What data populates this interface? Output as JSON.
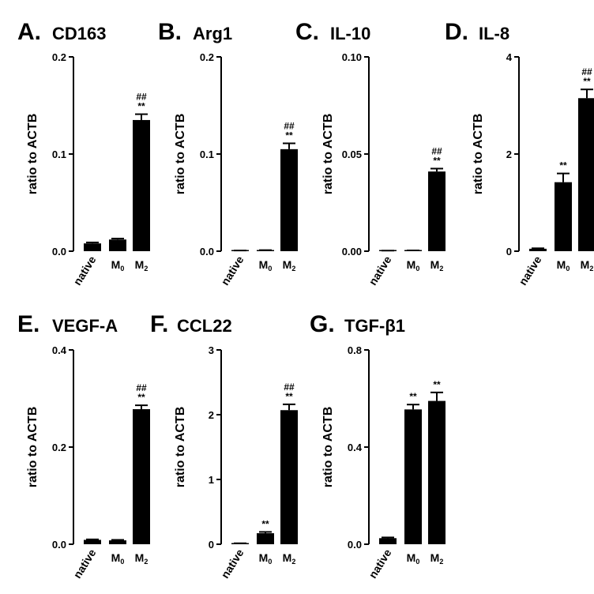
{
  "chart_data": [
    {
      "type": "bar",
      "panel": "A.",
      "title": "CD163",
      "ylabel": "ratio to ACTB",
      "categories": [
        "native",
        "M0",
        "M2"
      ],
      "values": [
        0.008,
        0.012,
        0.135
      ],
      "errors": [
        0.001,
        0.001,
        0.006
      ],
      "annotations": [
        "",
        "",
        "**"
      ],
      "annotations2": [
        "",
        "",
        "##"
      ],
      "ylim": [
        0,
        0.2
      ],
      "yticks": [
        0,
        0.1,
        0.2
      ],
      "ytick_labels": [
        "0.0",
        "0.1",
        "0.2"
      ]
    },
    {
      "type": "bar",
      "panel": "B.",
      "title": "Arg1",
      "ylabel": "ratio to ACTB",
      "categories": [
        "native",
        "M0",
        "M2"
      ],
      "values": [
        0.0005,
        0.0008,
        0.105
      ],
      "errors": [
        0.0002,
        0.0003,
        0.006
      ],
      "annotations": [
        "",
        "",
        "**"
      ],
      "annotations2": [
        "",
        "",
        "##"
      ],
      "ylim": [
        0,
        0.2
      ],
      "yticks": [
        0,
        0.1,
        0.2
      ],
      "ytick_labels": [
        "0.0",
        "0.1",
        "0.2"
      ]
    },
    {
      "type": "bar",
      "panel": "C.",
      "title": "IL-10",
      "ylabel": "ratio to ACTB",
      "categories": [
        "native",
        "M0",
        "M2"
      ],
      "values": [
        0.0002,
        0.0003,
        0.041
      ],
      "errors": [
        0.0001,
        0.0001,
        0.0015
      ],
      "annotations": [
        "",
        "",
        "**"
      ],
      "annotations2": [
        "",
        "",
        "##"
      ],
      "ylim": [
        0,
        0.1
      ],
      "yticks": [
        0,
        0.05,
        0.1
      ],
      "ytick_labels": [
        "0.00",
        "0.05",
        "0.10"
      ]
    },
    {
      "type": "bar",
      "panel": "D.",
      "title": "IL-8",
      "ylabel": "ratio to ACTB",
      "categories": [
        "native",
        "M0",
        "M2"
      ],
      "values": [
        0.05,
        1.42,
        3.15
      ],
      "errors": [
        0.01,
        0.18,
        0.18
      ],
      "annotations": [
        "",
        "**",
        "**"
      ],
      "annotations2": [
        "",
        "",
        "##"
      ],
      "ylim": [
        0,
        4
      ],
      "yticks": [
        0,
        2,
        4
      ],
      "ytick_labels": [
        "0",
        "2",
        "4"
      ]
    },
    {
      "type": "bar",
      "panel": "E.",
      "title": "VEGF-A",
      "ylabel": "ratio to ACTB",
      "categories": [
        "native",
        "M0",
        "M2"
      ],
      "values": [
        0.009,
        0.008,
        0.278
      ],
      "errors": [
        0.001,
        0.001,
        0.008
      ],
      "annotations": [
        "",
        "",
        "**"
      ],
      "annotations2": [
        "",
        "",
        "##"
      ],
      "ylim": [
        0,
        0.4
      ],
      "yticks": [
        0,
        0.2,
        0.4
      ],
      "ytick_labels": [
        "0.0",
        "0.2",
        "0.4"
      ]
    },
    {
      "type": "bar",
      "panel": "F.",
      "title": "CCL22",
      "ylabel": "ratio to ACTB",
      "categories": [
        "native",
        "M0",
        "M2"
      ],
      "values": [
        0.01,
        0.17,
        2.07
      ],
      "errors": [
        0.005,
        0.02,
        0.09
      ],
      "annotations": [
        "",
        "**",
        "**"
      ],
      "annotations2": [
        "",
        "",
        "##"
      ],
      "ylim": [
        0,
        3
      ],
      "yticks": [
        0,
        1,
        2,
        3
      ],
      "ytick_labels": [
        "0",
        "1",
        "2",
        "3"
      ]
    },
    {
      "type": "bar",
      "panel": "G.",
      "title": "TGF-β1",
      "ylabel": "ratio to ACTB",
      "categories": [
        "native",
        "M0",
        "M2"
      ],
      "values": [
        0.025,
        0.555,
        0.59
      ],
      "errors": [
        0.003,
        0.02,
        0.035
      ],
      "annotations": [
        "",
        "**",
        "**"
      ],
      "annotations2": [
        "",
        "",
        ""
      ],
      "ylim": [
        0,
        0.8
      ],
      "yticks": [
        0,
        0.4,
        0.8
      ],
      "ytick_labels": [
        "0.0",
        "0.4",
        "0.8"
      ]
    }
  ]
}
